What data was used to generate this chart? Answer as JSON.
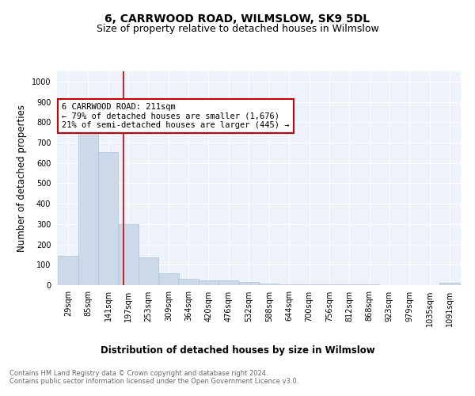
{
  "title": "6, CARRWOOD ROAD, WILMSLOW, SK9 5DL",
  "subtitle": "Size of property relative to detached houses in Wilmslow",
  "xlabel": "Distribution of detached houses by size in Wilmslow",
  "ylabel": "Number of detached properties",
  "footer_line1": "Contains HM Land Registry data © Crown copyright and database right 2024.",
  "footer_line2": "Contains public sector information licensed under the Open Government Licence v3.0.",
  "bar_edges": [
    29,
    85,
    141,
    197,
    253,
    309,
    364,
    420,
    476,
    532,
    588,
    644,
    700,
    756,
    812,
    868,
    923,
    979,
    1035,
    1091,
    1147
  ],
  "bar_heights": [
    143,
    778,
    655,
    299,
    138,
    57,
    30,
    22,
    22,
    15,
    8,
    5,
    5,
    5,
    5,
    5,
    0,
    0,
    0,
    10
  ],
  "bar_color": "#ccd9e8",
  "bar_edgecolor": "#a8c4d8",
  "vline_x": 211,
  "vline_color": "#cc0000",
  "annotation_box_color": "#cc0000",
  "annotation_title": "6 CARRWOOD ROAD: 211sqm",
  "annotation_line1": "← 79% of detached houses are smaller (1,676)",
  "annotation_line2": "21% of semi-detached houses are larger (445) →",
  "ylim": [
    0,
    1050
  ],
  "yticks": [
    0,
    100,
    200,
    300,
    400,
    500,
    600,
    700,
    800,
    900,
    1000
  ],
  "background_color": "#eef2fb",
  "grid_color": "#ffffff",
  "title_fontsize": 10,
  "subtitle_fontsize": 9,
  "axis_label_fontsize": 8.5,
  "tick_fontsize": 7,
  "annotation_fontsize": 7.5,
  "footer_fontsize": 6
}
